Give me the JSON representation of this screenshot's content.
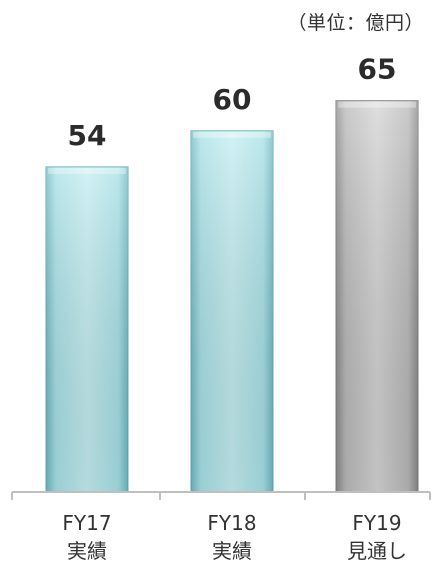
{
  "chart_data": {
    "type": "bar",
    "unit_label": "（単位：億円）",
    "categories": [
      {
        "line1": "FY17",
        "line2": "実績"
      },
      {
        "line1": "FY18",
        "line2": "実績"
      },
      {
        "line1": "FY19",
        "line2": "見通し"
      }
    ],
    "values": [
      54,
      60,
      65
    ],
    "bar_styles": [
      "actual",
      "actual",
      "forecast"
    ],
    "colors": {
      "actual": "#8fd4dc",
      "forecast": "#a8a8a8",
      "value_label": "#2b2b2b",
      "axis": "#bfbfbf",
      "tick_label": "#333333"
    },
    "ylim": [
      0,
      70
    ],
    "grid": false,
    "legend": "none"
  }
}
